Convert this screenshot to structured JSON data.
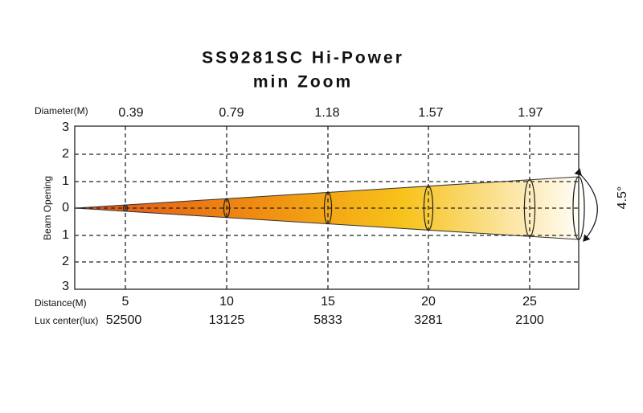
{
  "header": {
    "title": "SS9281SC Hi-Power",
    "subtitle": "min Zoom"
  },
  "diameter_label": "Diameter(M)",
  "distance_label": "Distance(M)",
  "lux_label": "Lux center(lux)",
  "beam_label": "Beam Opening",
  "angle": "4.5°",
  "y_ticks": [
    "3",
    "2",
    "1",
    "0",
    "1",
    "2",
    "3"
  ],
  "columns": [
    {
      "distance": "5",
      "diameter": "0.39",
      "lux": "52500"
    },
    {
      "distance": "10",
      "diameter": "0.79",
      "lux": "13125"
    },
    {
      "distance": "15",
      "diameter": "1.18",
      "lux": "5833"
    },
    {
      "distance": "20",
      "diameter": "1.57",
      "lux": "3281"
    },
    {
      "distance": "25",
      "diameter": "1.97",
      "lux": "2100"
    }
  ]
}
